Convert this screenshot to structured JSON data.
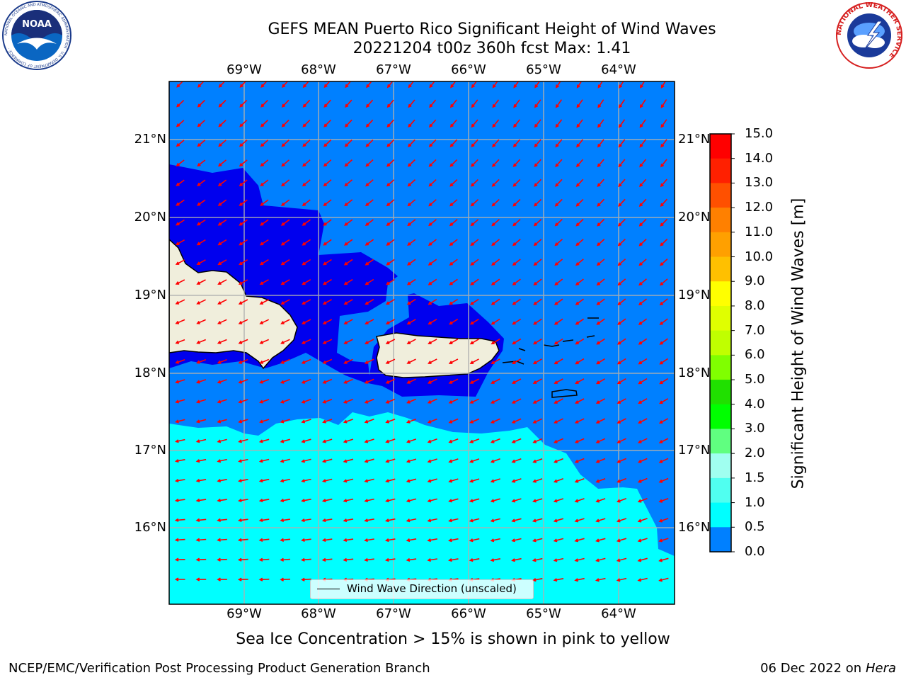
{
  "title": {
    "line1": "GEFS MEAN Puerto Rico Significant Height of Wind Waves",
    "line2": "20221204 t00z 360h fcst   Max: 1.41"
  },
  "logos": {
    "left": "NOAA",
    "left_ring_text": "NATIONAL OCEANIC AND ATMOSPHERIC ADMINISTRATION · U.S. DEPARTMENT OF COMMERCE ·",
    "right_ring_text": "NATIONAL WEATHER SERVICE"
  },
  "map": {
    "lon_labels": [
      "69°W",
      "68°W",
      "67°W",
      "66°W",
      "65°W",
      "64°W"
    ],
    "lat_labels": [
      "21°N",
      "20°N",
      "19°N",
      "18°N",
      "17°N",
      "16°N"
    ],
    "legend": "Wind Wave Direction (unscaled)",
    "ocean_color": "#0080ff",
    "low_wave_color": "#0000ee",
    "high_wave_color": "#00ffff",
    "land_color": "#f0eedc",
    "arrow_color": "#ff0000",
    "gridlines": true
  },
  "colorbar": {
    "label": "Significant Height of Wind Waves [m]",
    "ticks": [
      "15.0",
      "14.0",
      "13.0",
      "12.0",
      "11.0",
      "10.0",
      "9.0",
      "8.0",
      "7.0",
      "6.0",
      "5.0",
      "4.0",
      "3.0",
      "2.0",
      "1.5",
      "1.0",
      "0.5",
      "0.0"
    ],
    "colors": [
      "#ff0000",
      "#ff2000",
      "#ff5000",
      "#ff8000",
      "#ffa000",
      "#ffc000",
      "#ffff00",
      "#e0ff00",
      "#c0ff00",
      "#80ff00",
      "#20e000",
      "#00ff00",
      "#60ff80",
      "#a0fff0",
      "#50fff0",
      "#00ffff",
      "#0080ff",
      "#0000ff"
    ]
  },
  "ice_note": "Sea Ice Concentration > 15% is shown in pink to yellow",
  "footer": {
    "left": "NCEP/EMC/Verification Post Processing Product Generation Branch",
    "date": "06 Dec 2022 on",
    "host": "Hera"
  }
}
